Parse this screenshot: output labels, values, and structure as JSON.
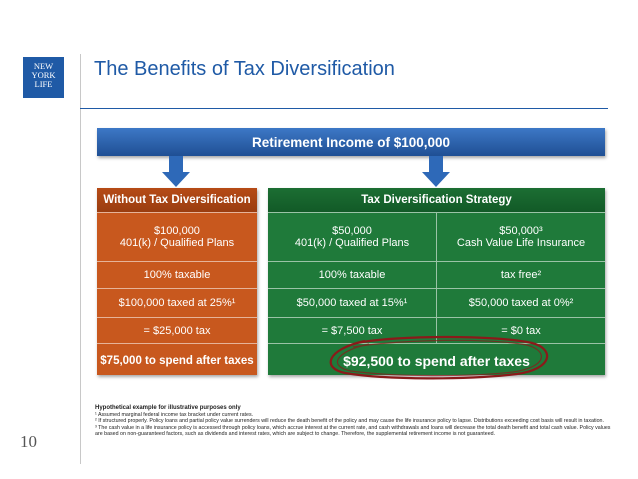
{
  "logo": {
    "line1": "NEW",
    "line2": "YORK",
    "line3": "LIFE"
  },
  "title": "The Benefits of Tax Diversification",
  "banner": "Retirement Income of $100,000",
  "left": {
    "header": "Without Tax Diversification",
    "row1_line1": "$100,000",
    "row1_line2": "401(k) / Qualified Plans",
    "row2": "100% taxable",
    "row3": "$100,000 taxed at 25%¹",
    "row4": "= $25,000 tax",
    "row5": "$75,000 to spend after taxes"
  },
  "right": {
    "header": "Tax Diversification Strategy",
    "col1": {
      "row1_line1": "$50,000",
      "row1_line2": "401(k) / Qualified Plans",
      "row2": "100% taxable",
      "row3": "$50,000 taxed at 15%¹",
      "row4": "= $7,500 tax"
    },
    "col2": {
      "row1_line1": "$50,000³",
      "row1_line2": "Cash Value Life Insurance",
      "row2": "tax free²",
      "row3": "$50,000 taxed at 0%²",
      "row4": "= $0 tax"
    },
    "row5": "$92,500 to spend after taxes"
  },
  "page_number": "10",
  "footnotes": {
    "heading": "Hypothetical example for illustrative purposes only",
    "n1": "¹ Assumed marginal federal income tax bracket under current rates.",
    "n2": "² If structured properly. Policy loans and partial policy value surrenders will reduce the death benefit of the policy and may cause the life insurance policy to lapse. Distributions exceeding cost basis will result in taxation.",
    "n3": "³ The cash value in a life insurance policy is accessed through policy loans, which accrue interest at the current rate, and cash withdrawals and loans will decrease the total death benefit and total cash value. Policy values are based on non-guaranteed factors, such as dividends and interest rates, which are subject to change. Therefore, the supplemental retirement income is not guaranteed."
  },
  "colors": {
    "blue": "#1f5aa6",
    "orange": "#c8581e",
    "green": "#1f7a3a",
    "circle": "#8a1a1a"
  }
}
